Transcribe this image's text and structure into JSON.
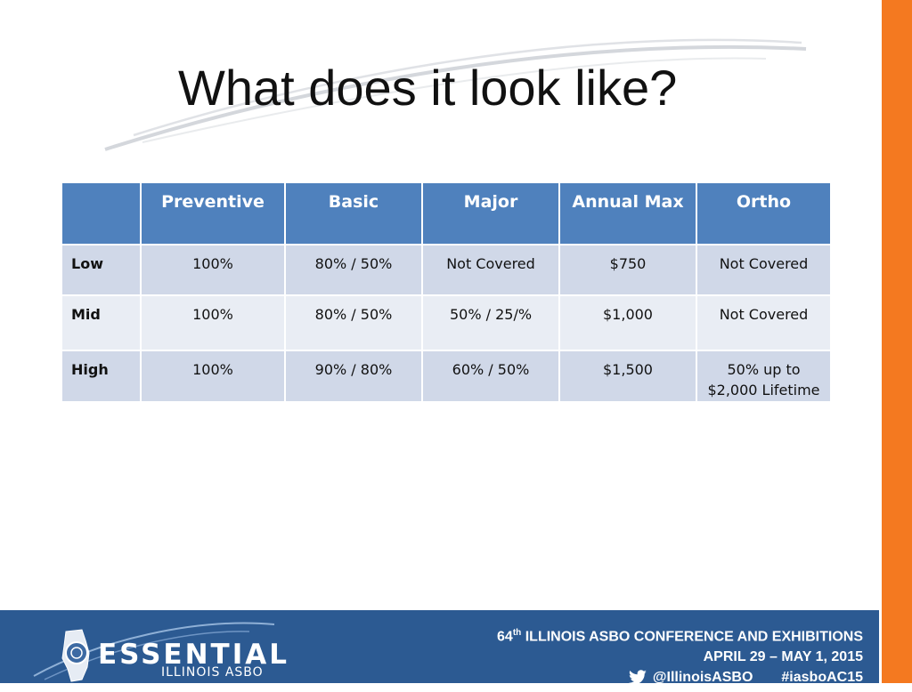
{
  "slide": {
    "title": "What does it look like?"
  },
  "table": {
    "columns": [
      "",
      "Preventive",
      "Basic",
      "Major",
      "Annual Max",
      "Ortho"
    ],
    "rows": [
      {
        "label": "Low",
        "cells": [
          "100%",
          "80% / 50%",
          "Not Covered",
          "$750",
          "Not Covered"
        ]
      },
      {
        "label": "Mid",
        "cells": [
          "100%",
          "80% / 50%",
          "50% / 25/%",
          "$1,000",
          "Not Covered"
        ]
      },
      {
        "label": "High",
        "cells": [
          "100%",
          "90% / 80%",
          "60% / 50%",
          "$1,500",
          "50% up to\n$2,000 Lifetime"
        ]
      }
    ]
  },
  "footer": {
    "logo_word": "ESSENTIAL",
    "logo_sub": "ILLINOIS ASBO",
    "conference_number": "64",
    "conference_suffix": "th",
    "conference_name": "ILLINOIS ASBO CONFERENCE AND EXHIBITIONS",
    "dates": "APRIL 29 – MAY 1, 2015",
    "handle": "@IllinoisASBO",
    "hashtag": "#iasboAC15"
  },
  "colors": {
    "header_blue": "#4f81bd",
    "row_light": "#d0d8e8",
    "row_lighter": "#e9edf4",
    "footer_blue": "#2c5a92",
    "accent_orange": "#f47920"
  },
  "icons": {
    "logo": "illinois-state-seal-logo",
    "twitter": "twitter-bird-icon"
  }
}
